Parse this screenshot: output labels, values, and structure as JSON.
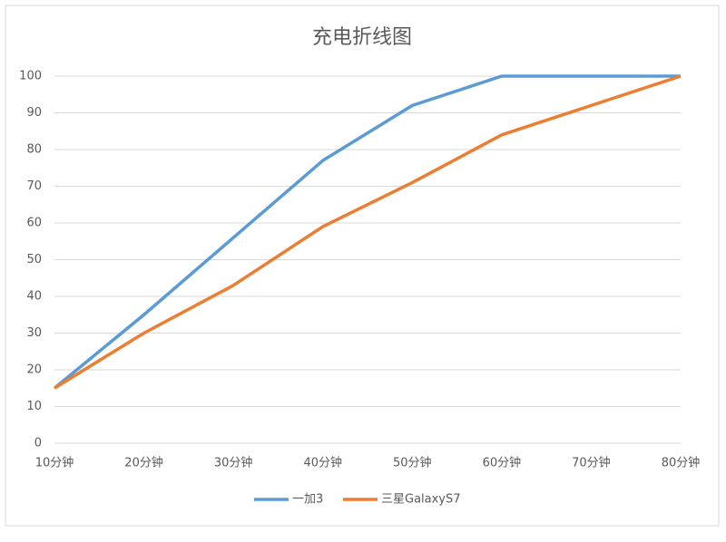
{
  "chart_data": {
    "type": "line",
    "title": "充电折线图",
    "categories": [
      "10分钟",
      "20分钟",
      "30分钟",
      "40分钟",
      "50分钟",
      "60分钟",
      "70分钟",
      "80分钟"
    ],
    "series": [
      {
        "name": "一加3",
        "color": "#5b9bd5",
        "values": [
          15,
          35,
          56,
          77,
          92,
          100,
          100,
          100
        ]
      },
      {
        "name": "三星GalaxyS7",
        "color": "#ed7d31",
        "values": [
          15,
          30,
          43,
          59,
          71,
          84,
          92,
          100
        ]
      }
    ],
    "ylim": [
      0,
      100
    ],
    "yticks": [
      0,
      10,
      20,
      30,
      40,
      50,
      60,
      70,
      80,
      90,
      100
    ],
    "grid": true,
    "legend": "bottom"
  }
}
